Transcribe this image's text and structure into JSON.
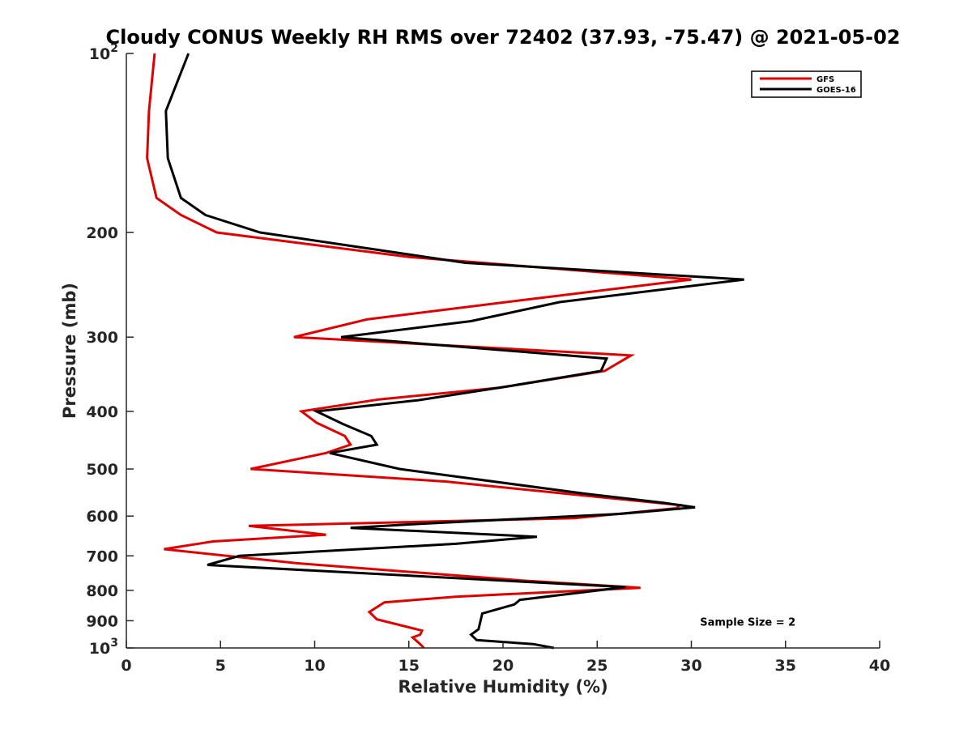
{
  "chart_data": {
    "type": "line",
    "title": "Cloudy CONUS Weekly RH RMS over 72402 (37.93, -75.47) @ 2021-05-02",
    "xlabel": "Relative Humidity (%)",
    "ylabel": "Pressure (mb)",
    "x_ticks": [
      {
        "value": 0,
        "label": "0"
      },
      {
        "value": 5,
        "label": "5"
      },
      {
        "value": 10,
        "label": "10"
      },
      {
        "value": 15,
        "label": "15"
      },
      {
        "value": 20,
        "label": "20"
      },
      {
        "value": 25,
        "label": "25"
      },
      {
        "value": 30,
        "label": "30"
      },
      {
        "value": 35,
        "label": "35"
      },
      {
        "value": 40,
        "label": "40"
      }
    ],
    "y_ticks": [
      {
        "value": 100,
        "base": "10",
        "exp": "2"
      },
      {
        "value": 200,
        "label": "200"
      },
      {
        "value": 300,
        "label": "300"
      },
      {
        "value": 400,
        "label": "400"
      },
      {
        "value": 500,
        "label": "500"
      },
      {
        "value": 600,
        "label": "600"
      },
      {
        "value": 700,
        "label": "700"
      },
      {
        "value": 800,
        "label": "800"
      },
      {
        "value": 900,
        "label": "900"
      },
      {
        "value": 1000,
        "base": "10",
        "exp": "3"
      }
    ],
    "xlim": [
      0,
      40
    ],
    "ylim": [
      100,
      1000
    ],
    "y_scale": "log",
    "y_reversed": true,
    "grid": false,
    "legend_position": "top-right",
    "series": [
      {
        "name": "GFS",
        "color": "#e00000",
        "points": [
          [
            1.5,
            100
          ],
          [
            1.2,
            125
          ],
          [
            1.1,
            150
          ],
          [
            1.6,
            175
          ],
          [
            2.9,
            187
          ],
          [
            4.8,
            200
          ],
          [
            15.0,
            220
          ],
          [
            30.0,
            240
          ],
          [
            21.0,
            260
          ],
          [
            12.8,
            280
          ],
          [
            8.9,
            300
          ],
          [
            26.8,
            322
          ],
          [
            25.4,
            342
          ],
          [
            19.8,
            365
          ],
          [
            13.4,
            382
          ],
          [
            9.3,
            400
          ],
          [
            10.1,
            418
          ],
          [
            11.6,
            440
          ],
          [
            11.9,
            455
          ],
          [
            10.6,
            470
          ],
          [
            6.6,
            500
          ],
          [
            17.0,
            525
          ],
          [
            24.5,
            555
          ],
          [
            29.4,
            575
          ],
          [
            29.2,
            582
          ],
          [
            23.8,
            605
          ],
          [
            6.5,
            623
          ],
          [
            10.6,
            645
          ],
          [
            4.6,
            662
          ],
          [
            2.0,
            682
          ],
          [
            9.0,
            720
          ],
          [
            21.0,
            770
          ],
          [
            27.3,
            792
          ],
          [
            17.5,
            820
          ],
          [
            13.7,
            838
          ],
          [
            12.9,
            870
          ],
          [
            13.3,
            895
          ],
          [
            15.7,
            935
          ],
          [
            15.6,
            950
          ],
          [
            15.2,
            960
          ],
          [
            15.6,
            985
          ],
          [
            15.8,
            1000
          ]
        ]
      },
      {
        "name": "GOES-16",
        "color": "#000000",
        "points": [
          [
            3.3,
            100
          ],
          [
            2.1,
            125
          ],
          [
            2.2,
            150
          ],
          [
            2.9,
            175
          ],
          [
            4.2,
            187
          ],
          [
            7.1,
            200
          ],
          [
            18.0,
            225
          ],
          [
            32.8,
            240
          ],
          [
            23.0,
            262
          ],
          [
            18.3,
            282
          ],
          [
            11.4,
            300
          ],
          [
            25.5,
            326
          ],
          [
            25.2,
            342
          ],
          [
            20.5,
            362
          ],
          [
            15.5,
            383
          ],
          [
            10.1,
            400
          ],
          [
            11.5,
            420
          ],
          [
            13.0,
            440
          ],
          [
            13.3,
            455
          ],
          [
            10.8,
            470
          ],
          [
            14.5,
            500
          ],
          [
            24.3,
            550
          ],
          [
            28.5,
            570
          ],
          [
            30.2,
            580
          ],
          [
            26.2,
            595
          ],
          [
            15.7,
            618
          ],
          [
            11.9,
            628
          ],
          [
            21.8,
            650
          ],
          [
            17.5,
            668
          ],
          [
            6.0,
            700
          ],
          [
            4.3,
            725
          ],
          [
            26.5,
            790
          ],
          [
            20.9,
            830
          ],
          [
            20.6,
            845
          ],
          [
            18.9,
            875
          ],
          [
            18.7,
            930
          ],
          [
            18.3,
            950
          ],
          [
            18.6,
            970
          ],
          [
            21.6,
            985
          ],
          [
            22.7,
            1000
          ]
        ]
      }
    ],
    "annotations": [
      {
        "text": "Sample Size = 2",
        "x": 33.0,
        "y": 900
      }
    ]
  }
}
